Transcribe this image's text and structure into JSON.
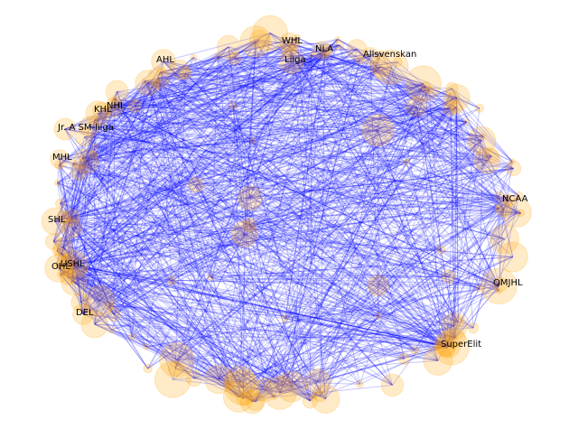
{
  "graph": {
    "node_color": "#ffa500",
    "node_opacity": 0.22,
    "edge_color": "#0000ff",
    "edge_opacity": 0.22,
    "background": "#ffffff",
    "labels": [
      {
        "id": "whl",
        "text": "WHL"
      },
      {
        "id": "nla",
        "text": "NLA"
      },
      {
        "id": "liiga",
        "text": "Liiga"
      },
      {
        "id": "allsvenskan",
        "text": "Allsvenskan"
      },
      {
        "id": "ahl",
        "text": "AHL"
      },
      {
        "id": "nhl",
        "text": "NHL"
      },
      {
        "id": "khl",
        "text": "KHL"
      },
      {
        "id": "jr-a-sm-liiga",
        "text": "Jr. A SM-liiga"
      },
      {
        "id": "mhl",
        "text": "MHL"
      },
      {
        "id": "shl",
        "text": "SHL"
      },
      {
        "id": "ohl",
        "text": "OHL"
      },
      {
        "id": "ushl",
        "text": "USHL"
      },
      {
        "id": "del",
        "text": "DEL"
      },
      {
        "id": "ncaa",
        "text": "NCAA"
      },
      {
        "id": "qmjhl",
        "text": "QMJHL"
      },
      {
        "id": "superelit",
        "text": "SuperElit"
      }
    ]
  }
}
